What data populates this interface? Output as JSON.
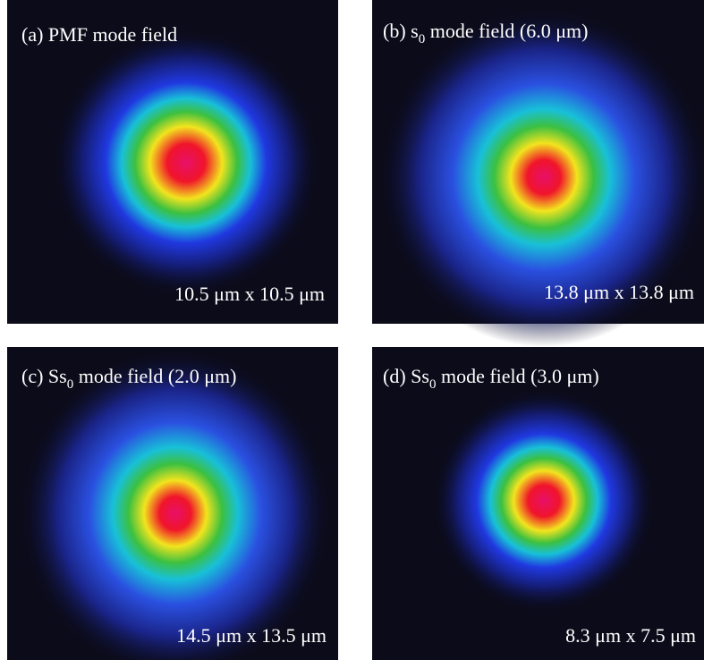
{
  "panels": [
    {
      "label": "(a) PMF mode field",
      "size": "10.5 μm x 10.5 μm"
    },
    {
      "label": "(b) s",
      "subscript": "0",
      "label_end": " mode field (6.0 μm)",
      "size": "13.8 μm x 13.8 μm"
    },
    {
      "label": "(c) Ss",
      "subscript": "0",
      "label_end": " mode field (2.0 μm)",
      "size": "14.5 μm x 13.5 μm"
    },
    {
      "label": "(d) Ss",
      "subscript": "0",
      "label_end": " mode field (3.0 μm)",
      "size": "8.3 μm x 7.5 μm"
    }
  ]
}
